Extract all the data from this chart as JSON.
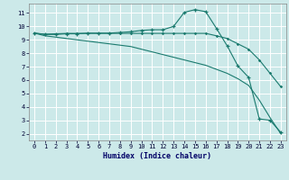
{
  "xlabel": "Humidex (Indice chaleur)",
  "xlim": [
    -0.5,
    23.5
  ],
  "ylim": [
    1.5,
    11.7
  ],
  "yticks": [
    2,
    3,
    4,
    5,
    6,
    7,
    8,
    9,
    10,
    11
  ],
  "xticks": [
    0,
    1,
    2,
    3,
    4,
    5,
    6,
    7,
    8,
    9,
    10,
    11,
    12,
    13,
    14,
    15,
    16,
    17,
    18,
    19,
    20,
    21,
    22,
    23
  ],
  "bg_color": "#cce9e9",
  "grid_color": "#ffffff",
  "line_color": "#1a7a6e",
  "line1_x": [
    0,
    1,
    2,
    3,
    4,
    5,
    6,
    7,
    8,
    9,
    10,
    11,
    12,
    13,
    14,
    15,
    16,
    17,
    18,
    19,
    20,
    21,
    22,
    23
  ],
  "line1_y": [
    9.5,
    9.4,
    9.4,
    9.45,
    9.45,
    9.5,
    9.5,
    9.5,
    9.55,
    9.6,
    9.7,
    9.75,
    9.75,
    10.0,
    11.05,
    11.25,
    11.1,
    9.85,
    8.55,
    7.05,
    6.2,
    3.1,
    3.0,
    2.1
  ],
  "line2_x": [
    0,
    1,
    2,
    3,
    4,
    5,
    6,
    7,
    8,
    9,
    10,
    11,
    12,
    13,
    14,
    15,
    16,
    17,
    18,
    19,
    20,
    21,
    22,
    23
  ],
  "line2_y": [
    9.5,
    9.42,
    9.45,
    9.48,
    9.48,
    9.48,
    9.48,
    9.48,
    9.48,
    9.48,
    9.48,
    9.48,
    9.48,
    9.48,
    9.48,
    9.48,
    9.48,
    9.3,
    9.1,
    8.7,
    8.3,
    7.5,
    6.5,
    5.5
  ],
  "line3_x": [
    0,
    1,
    2,
    3,
    4,
    5,
    6,
    7,
    8,
    9,
    10,
    11,
    12,
    13,
    14,
    15,
    16,
    17,
    18,
    19,
    20,
    21,
    22,
    23
  ],
  "line3_y": [
    9.5,
    9.3,
    9.2,
    9.1,
    9.0,
    8.9,
    8.8,
    8.7,
    8.6,
    8.5,
    8.3,
    8.1,
    7.9,
    7.7,
    7.5,
    7.3,
    7.1,
    6.8,
    6.5,
    6.1,
    5.6,
    4.5,
    3.2,
    2.0
  ]
}
